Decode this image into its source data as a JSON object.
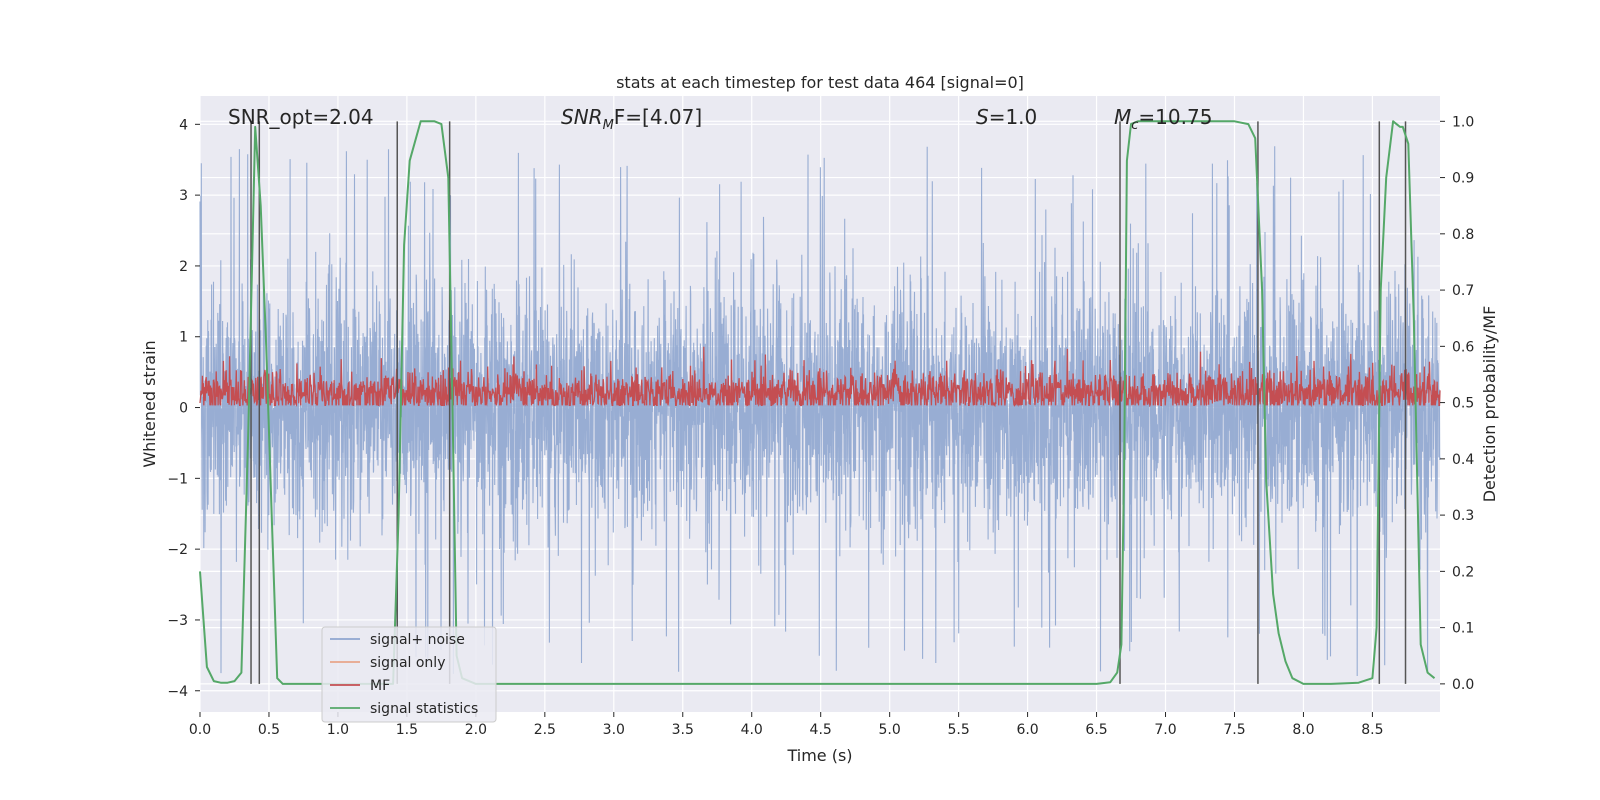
{
  "chart_data": {
    "type": "line",
    "title": "stats at each timestep for test data 464 [signal=0]",
    "xlabel": "Time (s)",
    "ylabel": "Whitened strain",
    "ylabel_right": "Detection probability/MF",
    "xlim": [
      0.0,
      8.99
    ],
    "ylim": [
      -4.3,
      4.4
    ],
    "ylim_right": [
      -0.05,
      1.045
    ],
    "x_ticks": [
      "0.0",
      "0.5",
      "1.0",
      "1.5",
      "2.0",
      "2.5",
      "3.0",
      "3.5",
      "4.0",
      "4.5",
      "5.0",
      "5.5",
      "6.0",
      "6.5",
      "7.0",
      "7.5",
      "8.0",
      "8.5"
    ],
    "y_ticks": [
      "−4",
      "−3",
      "−2",
      "−1",
      "0",
      "1",
      "2",
      "3",
      "4"
    ],
    "y_ticks_right": [
      "0.0",
      "0.1",
      "0.2",
      "0.3",
      "0.4",
      "0.5",
      "0.6",
      "0.7",
      "0.8",
      "0.9",
      "1.0"
    ],
    "grid": true,
    "legend_position": "lower-left",
    "annotations": {
      "snr_opt": "SNR_opt=2.04",
      "snr_mf_main": "SNR",
      "snr_mf_sub": "M",
      "snr_mf_rest": "F=[4.07]",
      "s_label": "S",
      "s_rest": "=1.0",
      "mc_label": "M",
      "mc_sub": "c",
      "mc_rest": "=10.75"
    },
    "series": [
      {
        "name": "signal+ noise",
        "color": "#8fa6cf",
        "style": "dense noise trace",
        "envelope": {
          "typical_low": -2.2,
          "typical_high": 2.4,
          "peak_low": -3.8,
          "peak_high": 3.7
        }
      },
      {
        "name": "signal only",
        "color": "#e8a58a",
        "style": "not visible"
      },
      {
        "name": "MF",
        "color": "#c44e52",
        "style": "dense trace on right axis",
        "envelope": {
          "low": 0.495,
          "high": 0.6
        }
      },
      {
        "name": "signal statistics",
        "color": "#55a868",
        "axis": "right",
        "x": [
          0.0,
          0.05,
          0.1,
          0.15,
          0.2,
          0.25,
          0.3,
          0.35,
          0.4,
          0.44,
          0.48,
          0.52,
          0.56,
          0.6,
          0.7,
          1.0,
          1.4,
          1.44,
          1.48,
          1.52,
          1.6,
          1.7,
          1.75,
          1.8,
          1.83,
          1.86,
          1.9,
          2.0,
          3.0,
          4.0,
          5.0,
          6.0,
          6.5,
          6.6,
          6.65,
          6.68,
          6.7,
          6.72,
          6.75,
          6.8,
          6.9,
          7.2,
          7.5,
          7.6,
          7.65,
          7.7,
          7.73,
          7.78,
          7.82,
          7.87,
          7.92,
          8.0,
          8.2,
          8.4,
          8.5,
          8.53,
          8.56,
          8.6,
          8.65,
          8.7,
          8.72,
          8.76,
          8.8,
          8.85,
          8.9,
          8.95
        ],
        "y": [
          0.2,
          0.03,
          0.005,
          0.002,
          0.002,
          0.005,
          0.02,
          0.45,
          0.99,
          0.85,
          0.6,
          0.3,
          0.01,
          0.0,
          0.0,
          0.0,
          0.0,
          0.3,
          0.78,
          0.93,
          1.0,
          1.0,
          0.995,
          0.9,
          0.5,
          0.05,
          0.01,
          0.0,
          0.0,
          0.0,
          0.0,
          0.0,
          0.0,
          0.003,
          0.02,
          0.07,
          0.38,
          0.93,
          0.995,
          1.0,
          1.0,
          1.0,
          1.0,
          0.995,
          0.97,
          0.7,
          0.36,
          0.16,
          0.09,
          0.04,
          0.01,
          0.0,
          0.0,
          0.002,
          0.01,
          0.1,
          0.7,
          0.9,
          1.0,
          0.99,
          0.99,
          0.96,
          0.65,
          0.07,
          0.02,
          0.01
        ]
      }
    ],
    "vertical_markers": [
      0.37,
      0.43,
      1.43,
      1.81,
      6.67,
      7.67,
      8.55,
      8.74
    ]
  }
}
